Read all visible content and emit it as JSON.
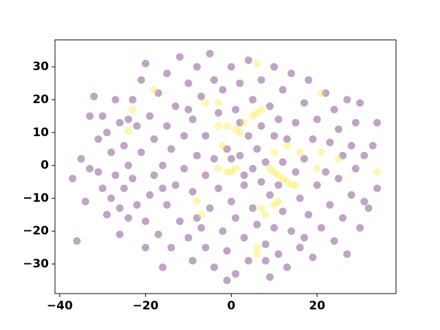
{
  "chart_data": {
    "type": "scatter",
    "xlim": [
      -41.1,
      38.4
    ],
    "ylim": [
      -39.0,
      38.2
    ],
    "xticks": [
      {
        "value": -40,
        "label": "−40"
      },
      {
        "value": -20,
        "label": "−20"
      },
      0,
      20
    ],
    "yticks": [
      {
        "value": -30,
        "label": "−30"
      },
      {
        "value": -20,
        "label": "−20"
      },
      {
        "value": -10,
        "label": "−10"
      },
      0,
      10,
      20,
      30
    ],
    "alpha": 0.35,
    "series": [
      {
        "color": "#440154",
        "x": [
          -37,
          -36,
          -35,
          -34,
          -33,
          -33,
          -32,
          -31,
          -31,
          -30,
          -30,
          -29,
          -29,
          -28,
          -28,
          -27,
          -27,
          -26,
          -26,
          -25,
          -25,
          -24,
          -24,
          -23,
          -23,
          -22,
          -22,
          -21,
          -21,
          -20,
          -20,
          -19,
          -19,
          -18,
          -18,
          -17,
          -17,
          -16,
          -16,
          -15,
          -15,
          -15,
          -14,
          -14,
          -13,
          -13,
          -12,
          -12,
          -11,
          -11,
          -10,
          -10,
          -9,
          -9,
          -9,
          -8,
          -8,
          -7,
          -7,
          -6,
          -6,
          -6,
          -5,
          -5,
          -4,
          -4,
          -4,
          -3,
          -3,
          -2,
          -2,
          -1,
          -1,
          0,
          0,
          1,
          1,
          1,
          2,
          2,
          3,
          3,
          4,
          4,
          4,
          5,
          5,
          5,
          6,
          6,
          7,
          7,
          7,
          8,
          8,
          9,
          9,
          9,
          10,
          10,
          10,
          11,
          11,
          12,
          12,
          12,
          13,
          13,
          14,
          14,
          15,
          15,
          16,
          16,
          17,
          17,
          18,
          18,
          19,
          19,
          20,
          20,
          21,
          22,
          22,
          23,
          23,
          24,
          24,
          25,
          25,
          26,
          26,
          27,
          27,
          28,
          28,
          29,
          29,
          30,
          30,
          31,
          31,
          32,
          33,
          34,
          34,
          -20,
          -26,
          -1,
          3,
          0,
          -8,
          11,
          2,
          -16,
          8,
          17,
          -24,
          -10
        ],
        "values": [
          -4,
          -23,
          2,
          -11,
          -1,
          15,
          21,
          8,
          -2,
          15,
          -7,
          10,
          -15,
          -10,
          4,
          -3,
          20,
          13,
          -21,
          -7,
          6,
          0,
          -16,
          20,
          -4,
          12,
          -12,
          26,
          4,
          -17,
          31,
          -9,
          15,
          -3,
          8,
          -21,
          22,
          -31,
          0,
          28,
          12,
          -12,
          -25,
          5,
          18,
          -6,
          33,
          -17,
          9,
          -1,
          -22,
          25,
          -29,
          14,
          -8,
          30,
          3,
          -19,
          21,
          -3,
          -25,
          9,
          34,
          -13,
          26,
          2,
          -31,
          16,
          -7,
          -20,
          23,
          5,
          -26,
          30,
          -11,
          17,
          -16,
          -33,
          3,
          25,
          -6,
          -22,
          9,
          32,
          -29,
          -1,
          20,
          -13,
          5,
          -18,
          -5,
          12,
          26,
          -24,
          1,
          -34,
          18,
          -9,
          30,
          9,
          -19,
          -27,
          14,
          1,
          23,
          -14,
          -31,
          8,
          -20,
          28,
          -2,
          13,
          -25,
          -10,
          19,
          2,
          -15,
          26,
          8,
          -28,
          -6,
          14,
          -19,
          22,
          -2,
          -12,
          7,
          17,
          -23,
          -4,
          11,
          -16,
          3,
          -27,
          20,
          -9,
          6,
          13,
          -1,
          -19,
          19,
          -11,
          3,
          -13,
          6,
          -7,
          13,
          -25,
          -13,
          -35,
          -3,
          2,
          -16,
          -6,
          13,
          -7,
          -29,
          -22,
          14,
          17
        ]
      },
      {
        "color": "#fde725",
        "x": [
          -24,
          -23,
          -18,
          -6,
          -3,
          -3,
          -1,
          1,
          2,
          3,
          5,
          6,
          7,
          6,
          0,
          -1,
          1,
          10,
          9,
          10,
          11,
          12,
          13,
          14,
          15,
          11,
          10,
          7,
          8,
          6,
          6,
          -8,
          -7,
          20,
          21,
          25,
          34,
          13,
          16,
          21,
          -2,
          -3
        ],
        "values": [
          10.5,
          17,
          23,
          19,
          19,
          12,
          12,
          11,
          10,
          13,
          15,
          16,
          17,
          31,
          -2,
          -2,
          -1,
          4,
          -1,
          -2,
          -3,
          -4,
          -5,
          -6,
          -6,
          -11,
          -12,
          -13,
          -15,
          -25,
          -27,
          -11,
          -15,
          -1,
          4,
          2,
          -2,
          6,
          4,
          22,
          6,
          -1
        ]
      }
    ]
  }
}
